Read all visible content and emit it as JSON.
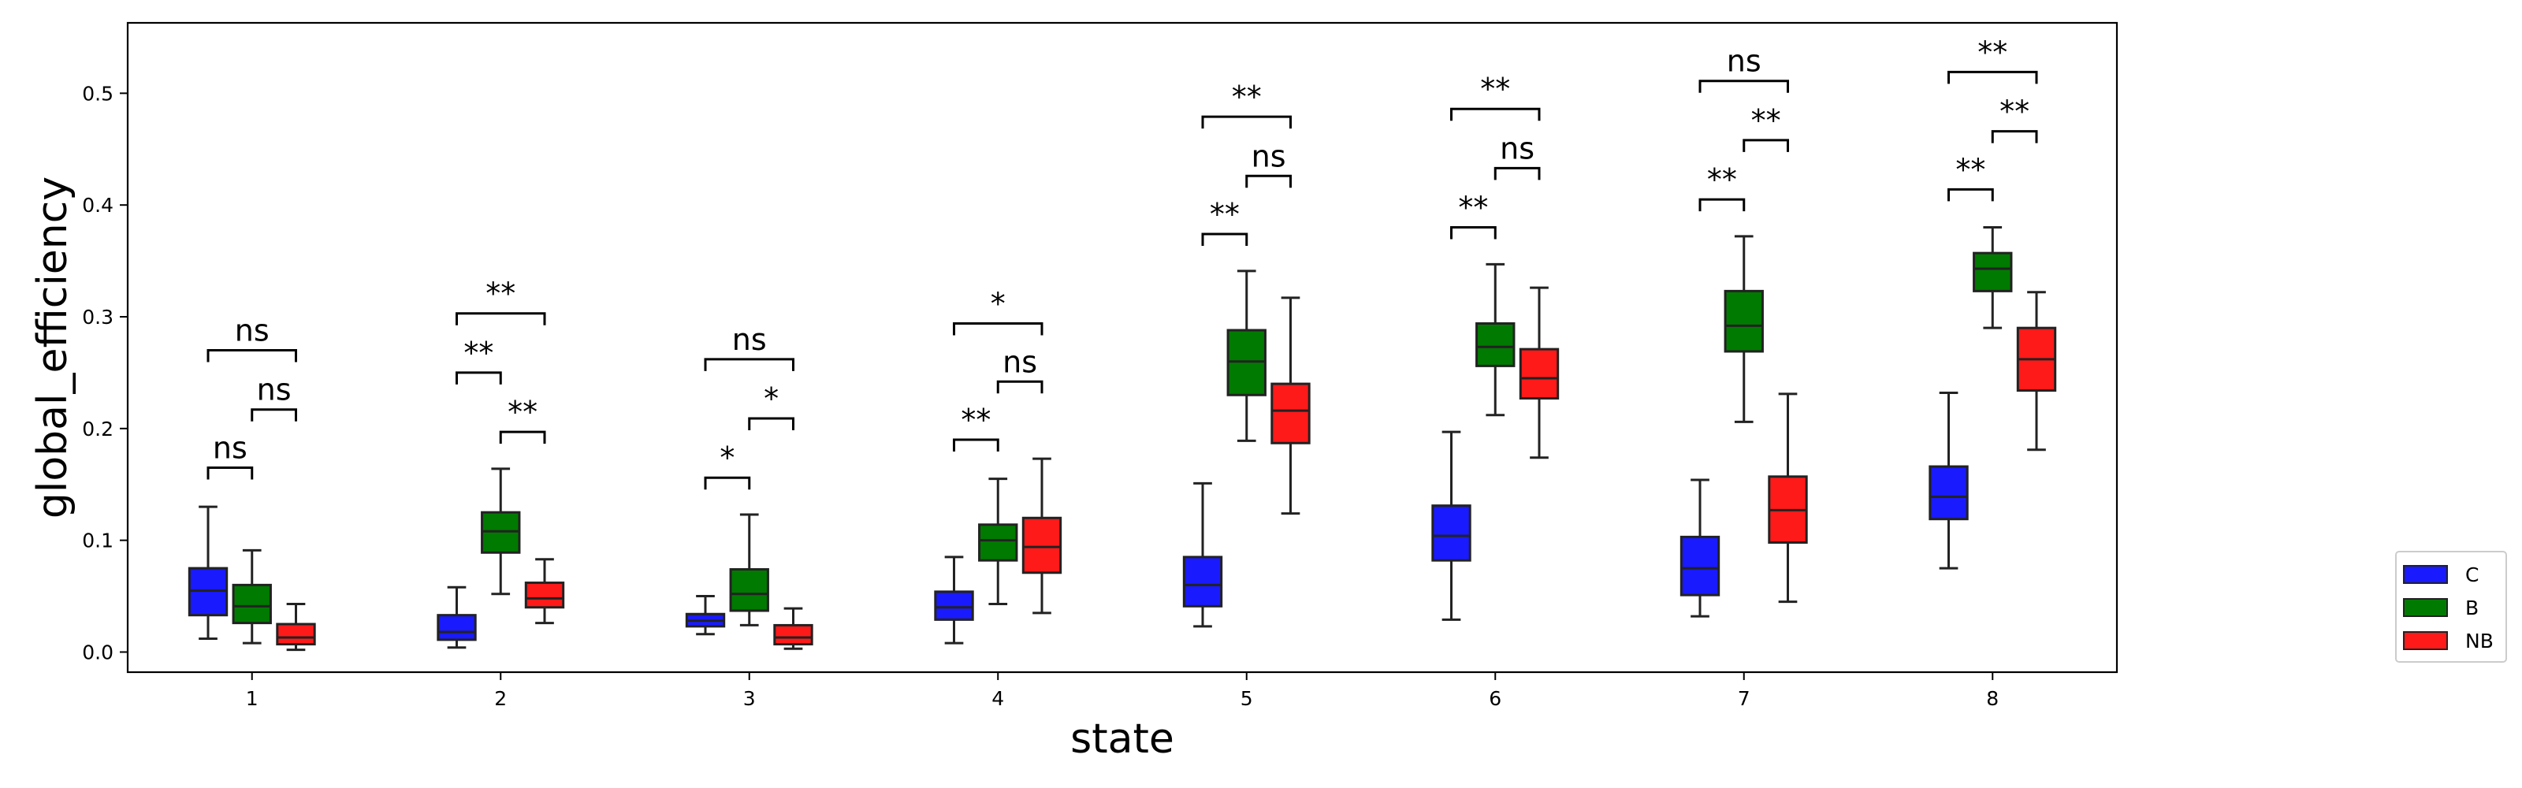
{
  "chart_data": {
    "type": "box",
    "xlabel": "state",
    "ylabel": "global_efficiency",
    "ylim": [
      -0.018,
      0.563
    ],
    "yticks": [
      "0.0",
      "0.1",
      "0.2",
      "0.3",
      "0.4",
      "0.5"
    ],
    "categories": [
      "1",
      "2",
      "3",
      "4",
      "5",
      "6",
      "7",
      "8"
    ],
    "legend_position": "outside-right-bottom",
    "series": [
      {
        "name": "C",
        "color": "#1a1aff",
        "boxes": [
          {
            "whislo": 0.012,
            "q1": 0.033,
            "med": 0.055,
            "q3": 0.075,
            "whishi": 0.13
          },
          {
            "whislo": 0.004,
            "q1": 0.011,
            "med": 0.018,
            "q3": 0.033,
            "whishi": 0.058
          },
          {
            "whislo": 0.016,
            "q1": 0.023,
            "med": 0.028,
            "q3": 0.034,
            "whishi": 0.05
          },
          {
            "whislo": 0.008,
            "q1": 0.029,
            "med": 0.04,
            "q3": 0.054,
            "whishi": 0.085
          },
          {
            "whislo": 0.023,
            "q1": 0.041,
            "med": 0.06,
            "q3": 0.085,
            "whishi": 0.151
          },
          {
            "whislo": 0.029,
            "q1": 0.082,
            "med": 0.104,
            "q3": 0.131,
            "whishi": 0.197
          },
          {
            "whislo": 0.032,
            "q1": 0.051,
            "med": 0.075,
            "q3": 0.103,
            "whishi": 0.154
          },
          {
            "whislo": 0.075,
            "q1": 0.119,
            "med": 0.139,
            "q3": 0.166,
            "whishi": 0.232
          }
        ]
      },
      {
        "name": "B",
        "color": "#007a00",
        "boxes": [
          {
            "whislo": 0.008,
            "q1": 0.026,
            "med": 0.041,
            "q3": 0.06,
            "whishi": 0.091
          },
          {
            "whislo": 0.052,
            "q1": 0.089,
            "med": 0.108,
            "q3": 0.125,
            "whishi": 0.164
          },
          {
            "whislo": 0.024,
            "q1": 0.037,
            "med": 0.052,
            "q3": 0.074,
            "whishi": 0.123
          },
          {
            "whislo": 0.043,
            "q1": 0.082,
            "med": 0.1,
            "q3": 0.114,
            "whishi": 0.155
          },
          {
            "whislo": 0.189,
            "q1": 0.23,
            "med": 0.26,
            "q3": 0.288,
            "whishi": 0.341
          },
          {
            "whislo": 0.212,
            "q1": 0.256,
            "med": 0.273,
            "q3": 0.294,
            "whishi": 0.347
          },
          {
            "whislo": 0.206,
            "q1": 0.269,
            "med": 0.292,
            "q3": 0.323,
            "whishi": 0.372
          },
          {
            "whislo": 0.29,
            "q1": 0.323,
            "med": 0.343,
            "q3": 0.357,
            "whishi": 0.38
          }
        ]
      },
      {
        "name": "NB",
        "color": "#ff1a1a",
        "boxes": [
          {
            "whislo": 0.002,
            "q1": 0.007,
            "med": 0.013,
            "q3": 0.025,
            "whishi": 0.043
          },
          {
            "whislo": 0.026,
            "q1": 0.04,
            "med": 0.048,
            "q3": 0.062,
            "whishi": 0.083
          },
          {
            "whislo": 0.003,
            "q1": 0.007,
            "med": 0.013,
            "q3": 0.024,
            "whishi": 0.039
          },
          {
            "whislo": 0.035,
            "q1": 0.071,
            "med": 0.094,
            "q3": 0.12,
            "whishi": 0.173
          },
          {
            "whislo": 0.124,
            "q1": 0.187,
            "med": 0.216,
            "q3": 0.24,
            "whishi": 0.317
          },
          {
            "whislo": 0.174,
            "q1": 0.227,
            "med": 0.245,
            "q3": 0.271,
            "whishi": 0.326
          },
          {
            "whislo": 0.045,
            "q1": 0.098,
            "med": 0.127,
            "q3": 0.157,
            "whishi": 0.231
          },
          {
            "whislo": 0.181,
            "q1": 0.234,
            "med": 0.262,
            "q3": 0.29,
            "whishi": 0.322
          }
        ]
      }
    ],
    "annotations": [
      {
        "category": "1",
        "from": "C",
        "to": "B",
        "level": 0.165,
        "label": "ns"
      },
      {
        "category": "1",
        "from": "B",
        "to": "NB",
        "level": 0.217,
        "label": "ns"
      },
      {
        "category": "1",
        "from": "C",
        "to": "NB",
        "level": 0.27,
        "label": "ns"
      },
      {
        "category": "2",
        "from": "C",
        "to": "B",
        "level": 0.25,
        "label": "**"
      },
      {
        "category": "2",
        "from": "B",
        "to": "NB",
        "level": 0.197,
        "label": "**"
      },
      {
        "category": "2",
        "from": "C",
        "to": "NB",
        "level": 0.303,
        "label": "**"
      },
      {
        "category": "3",
        "from": "C",
        "to": "B",
        "level": 0.156,
        "label": "*"
      },
      {
        "category": "3",
        "from": "B",
        "to": "NB",
        "level": 0.209,
        "label": "*"
      },
      {
        "category": "3",
        "from": "C",
        "to": "NB",
        "level": 0.262,
        "label": "ns"
      },
      {
        "category": "4",
        "from": "C",
        "to": "B",
        "level": 0.19,
        "label": "**"
      },
      {
        "category": "4",
        "from": "B",
        "to": "NB",
        "level": 0.242,
        "label": "ns"
      },
      {
        "category": "4",
        "from": "C",
        "to": "NB",
        "level": 0.294,
        "label": "*"
      },
      {
        "category": "5",
        "from": "C",
        "to": "B",
        "level": 0.374,
        "label": "**"
      },
      {
        "category": "5",
        "from": "B",
        "to": "NB",
        "level": 0.426,
        "label": "ns"
      },
      {
        "category": "5",
        "from": "C",
        "to": "NB",
        "level": 0.479,
        "label": "**"
      },
      {
        "category": "6",
        "from": "C",
        "to": "B",
        "level": 0.38,
        "label": "**"
      },
      {
        "category": "6",
        "from": "B",
        "to": "NB",
        "level": 0.433,
        "label": "ns"
      },
      {
        "category": "6",
        "from": "C",
        "to": "NB",
        "level": 0.486,
        "label": "**"
      },
      {
        "category": "7",
        "from": "C",
        "to": "B",
        "level": 0.405,
        "label": "**"
      },
      {
        "category": "7",
        "from": "B",
        "to": "NB",
        "level": 0.458,
        "label": "**"
      },
      {
        "category": "7",
        "from": "C",
        "to": "NB",
        "level": 0.511,
        "label": "ns"
      },
      {
        "category": "8",
        "from": "C",
        "to": "B",
        "level": 0.414,
        "label": "**"
      },
      {
        "category": "8",
        "from": "B",
        "to": "NB",
        "level": 0.466,
        "label": "**"
      },
      {
        "category": "8",
        "from": "C",
        "to": "NB",
        "level": 0.519,
        "label": "**"
      }
    ]
  }
}
